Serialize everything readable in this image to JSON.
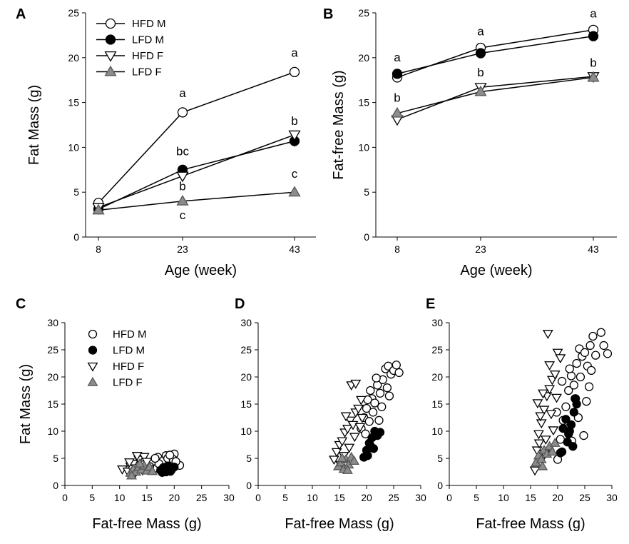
{
  "chart_data": [
    {
      "panel": "A",
      "type": "line",
      "ylabel": "Fat Mass (g)",
      "xlabel": "Age (week)",
      "x_ticks": [
        "8",
        "23",
        "43"
      ],
      "ylim": [
        0,
        25
      ],
      "y_ticks": [
        0,
        5,
        10,
        15,
        20,
        25
      ],
      "legend": "top-left",
      "series": [
        {
          "name": "HFD M",
          "marker": "circle-open",
          "color": "#ffffff",
          "values": [
            3.8,
            13.9,
            18.4
          ],
          "errors": [
            0.2,
            0.3,
            0.3
          ]
        },
        {
          "name": "LFD M",
          "marker": "circle-filled",
          "color": "#000000",
          "values": [
            3.1,
            7.5,
            10.7
          ],
          "errors": [
            0.2,
            0.3,
            0.6
          ]
        },
        {
          "name": "HFD F",
          "marker": "triangle-down-open",
          "color": "#ffffff",
          "values": [
            3.3,
            6.8,
            11.4
          ],
          "errors": [
            0.2,
            0.2,
            0.3
          ]
        },
        {
          "name": "LFD F",
          "marker": "triangle-up-gray",
          "color": "#8c8c8c",
          "values": [
            3.0,
            4.0,
            5.0
          ],
          "errors": [
            0.1,
            0.1,
            0.1
          ]
        }
      ],
      "annotations": [
        {
          "text": "a",
          "x": "23",
          "y": 15.6
        },
        {
          "text": "a",
          "x": "43",
          "y": 20.1
        },
        {
          "text": "bc",
          "x": "23",
          "y": 9.1
        },
        {
          "text": "b",
          "x": "23",
          "y": 5.2
        },
        {
          "text": "b",
          "x": "43",
          "y": 12.5
        },
        {
          "text": "c",
          "x": "23",
          "y": 2.0
        },
        {
          "text": "c",
          "x": "43",
          "y": 6.6
        }
      ]
    },
    {
      "panel": "B",
      "type": "line",
      "ylabel": "Fat-free Mass (g)",
      "xlabel": "Age (week)",
      "x_ticks": [
        "8",
        "23",
        "43"
      ],
      "ylim": [
        0,
        25
      ],
      "y_ticks": [
        0,
        5,
        10,
        15,
        20,
        25
      ],
      "series": [
        {
          "name": "HFD M",
          "marker": "circle-open",
          "color": "#ffffff",
          "values": [
            17.8,
            21.1,
            23.1
          ]
        },
        {
          "name": "LFD M",
          "marker": "circle-filled",
          "color": "#000000",
          "values": [
            18.2,
            20.5,
            22.4
          ]
        },
        {
          "name": "HFD F",
          "marker": "triangle-down-open",
          "color": "#ffffff",
          "values": [
            13.1,
            16.7,
            17.9
          ]
        },
        {
          "name": "LFD F",
          "marker": "triangle-up-gray",
          "color": "#8c8c8c",
          "values": [
            13.8,
            16.2,
            17.8
          ]
        }
      ],
      "annotations": [
        {
          "text": "a",
          "x": "8",
          "y": 19.6
        },
        {
          "text": "a",
          "x": "23",
          "y": 22.5
        },
        {
          "text": "a",
          "x": "43",
          "y": 24.5
        },
        {
          "text": "b",
          "x": "8",
          "y": 15.1
        },
        {
          "text": "b",
          "x": "23",
          "y": 17.9
        },
        {
          "text": "b",
          "x": "43",
          "y": 19.0
        }
      ]
    },
    {
      "panel": "C",
      "type": "scatter",
      "ylabel": "Fat Mass (g)",
      "xlabel": "Fat-free Mass (g)",
      "xlim": [
        0,
        30
      ],
      "ylim": [
        0,
        30
      ],
      "x_ticks": [
        0,
        5,
        10,
        15,
        20,
        25,
        30
      ],
      "y_ticks": [
        0,
        5,
        10,
        15,
        20,
        25,
        30
      ],
      "legend": "top-left",
      "series": [
        {
          "name": "HFD M",
          "marker": "circle-open",
          "points": [
            [
              16.2,
              4.5
            ],
            [
              17,
              5.2
            ],
            [
              17.5,
              3.8
            ],
            [
              18,
              4.6
            ],
            [
              18.5,
              5.5
            ],
            [
              19,
              3.6
            ],
            [
              19.5,
              4.2
            ],
            [
              20,
              5.8
            ],
            [
              20.5,
              3.9
            ],
            [
              21,
              3.7
            ],
            [
              16.8,
              3.2
            ],
            [
              18.8,
              5.0
            ],
            [
              17.2,
              4.0
            ],
            [
              19.8,
              4.8
            ],
            [
              15.5,
              3.5
            ],
            [
              20.3,
              4.4
            ],
            [
              18.2,
              3.1
            ],
            [
              16.5,
              5.0
            ],
            [
              19.2,
              5.6
            ]
          ]
        },
        {
          "name": "LFD M",
          "marker": "circle-filled",
          "points": [
            [
              17.5,
              2.8
            ],
            [
              18,
              3.3
            ],
            [
              18.5,
              2.5
            ],
            [
              19,
              3.1
            ],
            [
              19.5,
              2.9
            ],
            [
              20,
              3.4
            ],
            [
              17.8,
              2.4
            ],
            [
              18.8,
              3.6
            ],
            [
              19.3,
              2.6
            ]
          ]
        },
        {
          "name": "HFD F",
          "marker": "triangle-down-open",
          "points": [
            [
              10.5,
              3.0
            ],
            [
              11.5,
              2.6
            ],
            [
              12,
              3.5
            ],
            [
              12.5,
              4.0
            ],
            [
              13,
              3.2
            ],
            [
              13.5,
              4.8
            ],
            [
              14,
              3.9
            ],
            [
              14.5,
              5.3
            ],
            [
              15,
              4.4
            ],
            [
              15.5,
              3.1
            ],
            [
              12.8,
              2.2
            ],
            [
              14.2,
              2.8
            ],
            [
              13.2,
              5.5
            ],
            [
              11.8,
              4.3
            ]
          ]
        },
        {
          "name": "LFD F",
          "marker": "triangle-up-gray",
          "points": [
            [
              12,
              2.3
            ],
            [
              12.5,
              3.0
            ],
            [
              13,
              2.5
            ],
            [
              13.5,
              3.3
            ],
            [
              14,
              2.9
            ],
            [
              14.5,
              3.6
            ],
            [
              15,
              2.7
            ],
            [
              15.5,
              3.4
            ],
            [
              16,
              2.6
            ],
            [
              13.7,
              4.0
            ],
            [
              12.2,
              1.8
            ]
          ]
        }
      ]
    },
    {
      "panel": "D",
      "type": "scatter",
      "xlabel": "Fat-free Mass (g)",
      "xlim": [
        0,
        30
      ],
      "ylim": [
        0,
        30
      ],
      "x_ticks": [
        0,
        5,
        10,
        15,
        20,
        25,
        30
      ],
      "y_ticks": [
        0,
        5,
        10,
        15,
        20,
        25,
        30
      ],
      "series": [
        {
          "name": "HFD M",
          "marker": "circle-open",
          "points": [
            [
              19,
              10.5
            ],
            [
              19.5,
              12.5
            ],
            [
              20,
              14.2
            ],
            [
              20.5,
              11.8
            ],
            [
              21,
              16.0
            ],
            [
              21.5,
              15.2
            ],
            [
              22,
              18.5
            ],
            [
              22.5,
              17.0
            ],
            [
              23,
              19.5
            ],
            [
              23.5,
              21.5
            ],
            [
              24,
              22.0
            ],
            [
              24.5,
              20.5
            ],
            [
              25,
              21.2
            ],
            [
              25.5,
              22.2
            ],
            [
              26,
              20.8
            ],
            [
              21.2,
              13.5
            ],
            [
              22.3,
              12.0
            ],
            [
              20.7,
              17.5
            ],
            [
              23.8,
              18.0
            ],
            [
              22.8,
              14.5
            ],
            [
              19.8,
              9.5
            ],
            [
              24.2,
              16.5
            ],
            [
              21.8,
              19.8
            ],
            [
              20.2,
              15.8
            ]
          ]
        },
        {
          "name": "LFD M",
          "marker": "circle-filled",
          "points": [
            [
              19.5,
              5.2
            ],
            [
              20,
              6.5
            ],
            [
              20.5,
              7.8
            ],
            [
              21,
              8.8
            ],
            [
              21.5,
              10.0
            ],
            [
              22,
              9.2
            ],
            [
              20.2,
              5.5
            ],
            [
              21.3,
              6.8
            ],
            [
              22.5,
              9.8
            ],
            [
              20.8,
              7.2
            ]
          ]
        },
        {
          "name": "HFD F",
          "marker": "triangle-down-open",
          "points": [
            [
              14,
              4.8
            ],
            [
              14.5,
              6.2
            ],
            [
              15,
              7.5
            ],
            [
              15.5,
              8.2
            ],
            [
              16,
              9.8
            ],
            [
              16.5,
              10.5
            ],
            [
              17,
              12.0
            ],
            [
              17.5,
              11.2
            ],
            [
              18,
              13.5
            ],
            [
              18.5,
              14.2
            ],
            [
              19,
              15.8
            ],
            [
              17.2,
              18.5
            ],
            [
              18,
              18.8
            ],
            [
              15.8,
              5.5
            ],
            [
              16.8,
              7.0
            ],
            [
              19.2,
              12.5
            ],
            [
              17.8,
              9.0
            ],
            [
              16.2,
              12.8
            ],
            [
              18.8,
              10.8
            ],
            [
              15.2,
              3.8
            ]
          ]
        },
        {
          "name": "LFD F",
          "marker": "triangle-up-gray",
          "points": [
            [
              14.8,
              3.5
            ],
            [
              15.3,
              4.2
            ],
            [
              15.8,
              3.0
            ],
            [
              16.2,
              4.8
            ],
            [
              16.7,
              3.8
            ],
            [
              17.2,
              5.2
            ],
            [
              17.7,
              4.5
            ],
            [
              15.5,
              5.0
            ],
            [
              16.5,
              2.8
            ]
          ]
        }
      ]
    },
    {
      "panel": "E",
      "type": "scatter",
      "xlabel": "Fat-free Mass (g)",
      "xlim": [
        0,
        30
      ],
      "ylim": [
        0,
        30
      ],
      "x_ticks": [
        0,
        5,
        10,
        15,
        20,
        25,
        30
      ],
      "y_ticks": [
        0,
        5,
        10,
        15,
        20,
        25,
        30
      ],
      "series": [
        {
          "name": "HFD M",
          "marker": "circle-open",
          "points": [
            [
              20,
              4.8
            ],
            [
              20.5,
              8.5
            ],
            [
              21,
              12.0
            ],
            [
              21.5,
              14.5
            ],
            [
              22,
              17.5
            ],
            [
              22.5,
              20.2
            ],
            [
              23,
              18.5
            ],
            [
              23.5,
              22.5
            ],
            [
              24,
              25.2
            ],
            [
              24.5,
              23.8
            ],
            [
              25,
              24.5
            ],
            [
              25.5,
              22.0
            ],
            [
              26,
              25.8
            ],
            [
              26.5,
              27.5
            ],
            [
              27,
              24.0
            ],
            [
              28,
              28.2
            ],
            [
              28.5,
              25.8
            ],
            [
              29.2,
              24.3
            ],
            [
              24.8,
              9.2
            ],
            [
              25.3,
              15.5
            ],
            [
              23.8,
              12.5
            ],
            [
              22.2,
              21.5
            ],
            [
              20.8,
              19.2
            ],
            [
              21.8,
              10.5
            ],
            [
              24.2,
              20.0
            ],
            [
              26.2,
              21.2
            ],
            [
              23.2,
              16.0
            ],
            [
              19.8,
              13.5
            ],
            [
              22.6,
              8.2
            ],
            [
              25.8,
              18.2
            ]
          ]
        },
        {
          "name": "LFD M",
          "marker": "circle-filled",
          "points": [
            [
              20.5,
              6.0
            ],
            [
              21,
              10.5
            ],
            [
              21.5,
              12.2
            ],
            [
              22,
              9.5
            ],
            [
              22.5,
              11.2
            ],
            [
              23,
              13.5
            ],
            [
              23.5,
              15.0
            ],
            [
              21.8,
              8.0
            ],
            [
              22.8,
              7.2
            ],
            [
              23.3,
              16.0
            ],
            [
              20.8,
              6.2
            ],
            [
              22.2,
              10.0
            ]
          ]
        },
        {
          "name": "HFD F",
          "marker": "triangle-down-open",
          "points": [
            [
              15.8,
              2.8
            ],
            [
              16.2,
              6.5
            ],
            [
              16.5,
              9.5
            ],
            [
              17,
              11.5
            ],
            [
              17.5,
              14.0
            ],
            [
              18,
              16.5
            ],
            [
              18.5,
              17.8
            ],
            [
              19,
              19.5
            ],
            [
              19.5,
              20.5
            ],
            [
              20,
              24.5
            ],
            [
              18.2,
              28.0
            ],
            [
              16.8,
              12.8
            ],
            [
              17.8,
              8.5
            ],
            [
              18.8,
              13.2
            ],
            [
              19.2,
              10.2
            ],
            [
              17.3,
              17.0
            ],
            [
              16.3,
              15.2
            ],
            [
              18.5,
              22.2
            ],
            [
              19.8,
              16.2
            ],
            [
              17.6,
              5.8
            ],
            [
              20.5,
              23.5
            ],
            [
              16.6,
              7.8
            ]
          ]
        },
        {
          "name": "LFD F",
          "marker": "triangle-up-gray",
          "points": [
            [
              16,
              4.2
            ],
            [
              16.5,
              5.5
            ],
            [
              17,
              4.8
            ],
            [
              17.5,
              6.5
            ],
            [
              18,
              5.8
            ],
            [
              18.5,
              7.2
            ],
            [
              19,
              6.2
            ],
            [
              19.5,
              7.8
            ],
            [
              17.2,
              3.5
            ]
          ]
        }
      ]
    }
  ]
}
